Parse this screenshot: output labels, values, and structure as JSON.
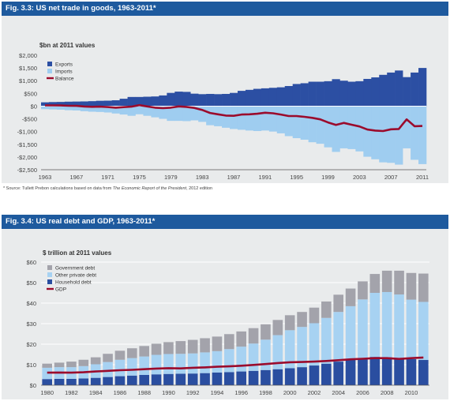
{
  "colors": {
    "title_bar": "#1e5a9e",
    "panel_bg": "#e9ebec",
    "exports": "#2c4fa3",
    "imports": "#9fcdf0",
    "balance": "#9b0b2c",
    "government_debt": "#a3a3ab",
    "other_private_debt": "#a7d2f2",
    "household_debt": "#2a4ea0",
    "gdp": "#9b0b2c",
    "zero_line": "#ffffff"
  },
  "fig1": {
    "title": "Fig. 3.3: US net trade in goods, 1963-2011*",
    "note_prefix": "* Source: Tullett Prebon calculations based on data from ",
    "note_source_title": "The Economic Report of the President",
    "note_suffix": ", 2012 edition",
    "chart_data": {
      "type": "bar",
      "title": "Fig. 3.3: US net trade in goods, 1963-2011*",
      "ylabel": "$bn at 2011 values",
      "xlabel": "",
      "ylim": [
        -2500,
        2000
      ],
      "yticks": [
        2000,
        1500,
        1000,
        500,
        0,
        -500,
        -1000,
        -1500,
        -2000,
        -2500
      ],
      "ytick_labels": [
        "$2,000",
        "$1,500",
        "$1,000",
        "$500",
        "$0",
        "-$500",
        "-$1,000",
        "-$1,500",
        "-$2,000",
        "-$2,500"
      ],
      "xticks": [
        1963,
        1967,
        1971,
        1975,
        1979,
        1983,
        1987,
        1991,
        1995,
        1999,
        2003,
        2007,
        2011
      ],
      "legend": [
        "Exports",
        "Imports",
        "Balance"
      ],
      "legend_position": "top-left",
      "grid": false,
      "years": [
        1963,
        1964,
        1965,
        1966,
        1967,
        1968,
        1969,
        1970,
        1971,
        1972,
        1973,
        1974,
        1975,
        1976,
        1977,
        1978,
        1979,
        1980,
        1981,
        1982,
        1983,
        1984,
        1985,
        1986,
        1987,
        1988,
        1989,
        1990,
        1991,
        1992,
        1993,
        1994,
        1995,
        1996,
        1997,
        1998,
        1999,
        2000,
        2001,
        2002,
        2003,
        2004,
        2005,
        2006,
        2007,
        2008,
        2009,
        2010,
        2011
      ],
      "series": [
        {
          "name": "Exports",
          "kind": "bar",
          "values": [
            150,
            160,
            165,
            175,
            180,
            185,
            195,
            210,
            215,
            230,
            290,
            360,
            360,
            370,
            380,
            420,
            520,
            570,
            560,
            490,
            470,
            480,
            470,
            480,
            520,
            600,
            640,
            680,
            700,
            720,
            740,
            790,
            870,
            900,
            960,
            960,
            980,
            1060,
            1000,
            960,
            980,
            1070,
            1130,
            1230,
            1320,
            1400,
            1140,
            1320,
            1500
          ]
        },
        {
          "name": "Imports",
          "kind": "bar",
          "values": [
            -120,
            -130,
            -140,
            -160,
            -170,
            -200,
            -220,
            -230,
            -250,
            -290,
            -330,
            -380,
            -320,
            -380,
            -440,
            -500,
            -580,
            -580,
            -590,
            -560,
            -620,
            -750,
            -790,
            -850,
            -900,
            -930,
            -960,
            -980,
            -960,
            -1000,
            -1070,
            -1180,
            -1260,
            -1320,
            -1420,
            -1480,
            -1620,
            -1800,
            -1660,
            -1690,
            -1780,
            -1990,
            -2090,
            -2210,
            -2230,
            -2300,
            -1660,
            -2110,
            -2280
          ]
        },
        {
          "name": "Balance",
          "kind": "line",
          "values": [
            30,
            30,
            25,
            15,
            10,
            -15,
            -25,
            -20,
            -35,
            -60,
            -40,
            -20,
            40,
            -10,
            -60,
            -80,
            -60,
            -10,
            -30,
            -70,
            -150,
            -270,
            -320,
            -370,
            -380,
            -330,
            -320,
            -300,
            -260,
            -280,
            -330,
            -390,
            -390,
            -420,
            -460,
            -520,
            -640,
            -740,
            -660,
            -730,
            -800,
            -920,
            -960,
            -980,
            -910,
            -900,
            -520,
            -790,
            -780
          ]
        }
      ]
    }
  },
  "fig2": {
    "title": "Fig. 3.4: US real debt and GDP, 1963-2011*",
    "chart_data": {
      "type": "bar",
      "title": "Fig. 3.4: US real debt and GDP, 1963-2011*",
      "ylabel": "$ trillion at 2011 values",
      "xlabel": "",
      "ylim": [
        0,
        60
      ],
      "yticks": [
        60,
        50,
        40,
        30,
        20,
        10,
        0
      ],
      "ytick_labels": [
        "$60",
        "$50",
        "$40",
        "$30",
        "$20",
        "$10",
        "$0"
      ],
      "xticks": [
        1980,
        1982,
        1984,
        1986,
        1988,
        1990,
        1992,
        1994,
        1996,
        1998,
        2000,
        2002,
        2004,
        2006,
        2008,
        2010
      ],
      "legend": [
        "Government debt",
        "Other private debt",
        "Household debt",
        "GDP"
      ],
      "legend_position": "top-left",
      "grid": true,
      "years": [
        1980,
        1981,
        1982,
        1983,
        1984,
        1985,
        1986,
        1987,
        1988,
        1989,
        1990,
        1991,
        1992,
        1993,
        1994,
        1995,
        1996,
        1997,
        1998,
        1999,
        2000,
        2001,
        2002,
        2003,
        2004,
        2005,
        2006,
        2007,
        2008,
        2009,
        2010,
        2011
      ],
      "series": [
        {
          "name": "Household debt",
          "kind": "stack",
          "values": [
            3.0,
            3.1,
            3.1,
            3.3,
            3.6,
            4.0,
            4.4,
            4.7,
            5.0,
            5.3,
            5.5,
            5.6,
            5.7,
            5.9,
            6.2,
            6.4,
            6.7,
            7.0,
            7.4,
            7.8,
            8.3,
            8.8,
            9.6,
            10.5,
            11.5,
            12.4,
            13.3,
            13.8,
            13.6,
            13.2,
            12.7,
            12.3
          ]
        },
        {
          "name": "Other private debt",
          "kind": "stack",
          "values": [
            5.5,
            5.7,
            5.7,
            6.0,
            6.6,
            7.3,
            8.0,
            8.5,
            9.0,
            9.5,
            9.7,
            9.7,
            9.8,
            10.1,
            10.4,
            11.2,
            12.1,
            13.3,
            14.8,
            16.6,
            18.5,
            19.6,
            20.6,
            22.3,
            24.2,
            26.1,
            28.5,
            31.2,
            31.8,
            31.0,
            29.0,
            28.3
          ]
        },
        {
          "name": "Government debt",
          "kind": "stack",
          "values": [
            2.0,
            2.2,
            2.7,
            3.1,
            3.4,
            4.0,
            4.4,
            4.8,
            5.1,
            5.4,
            5.8,
            6.2,
            6.6,
            6.9,
            7.1,
            7.3,
            7.4,
            7.5,
            7.5,
            7.4,
            7.3,
            7.3,
            7.6,
            8.0,
            8.4,
            8.6,
            8.8,
            9.2,
            10.4,
            11.6,
            13.0,
            13.8
          ]
        },
        {
          "name": "GDP",
          "kind": "line",
          "values": [
            6.1,
            6.2,
            6.1,
            6.3,
            6.7,
            7.0,
            7.3,
            7.5,
            7.8,
            8.1,
            8.3,
            8.2,
            8.5,
            8.7,
            9.0,
            9.2,
            9.5,
            9.9,
            10.3,
            10.8,
            11.2,
            11.3,
            11.5,
            11.8,
            12.2,
            12.6,
            12.9,
            13.2,
            13.2,
            12.8,
            13.2,
            13.5
          ]
        }
      ]
    }
  }
}
